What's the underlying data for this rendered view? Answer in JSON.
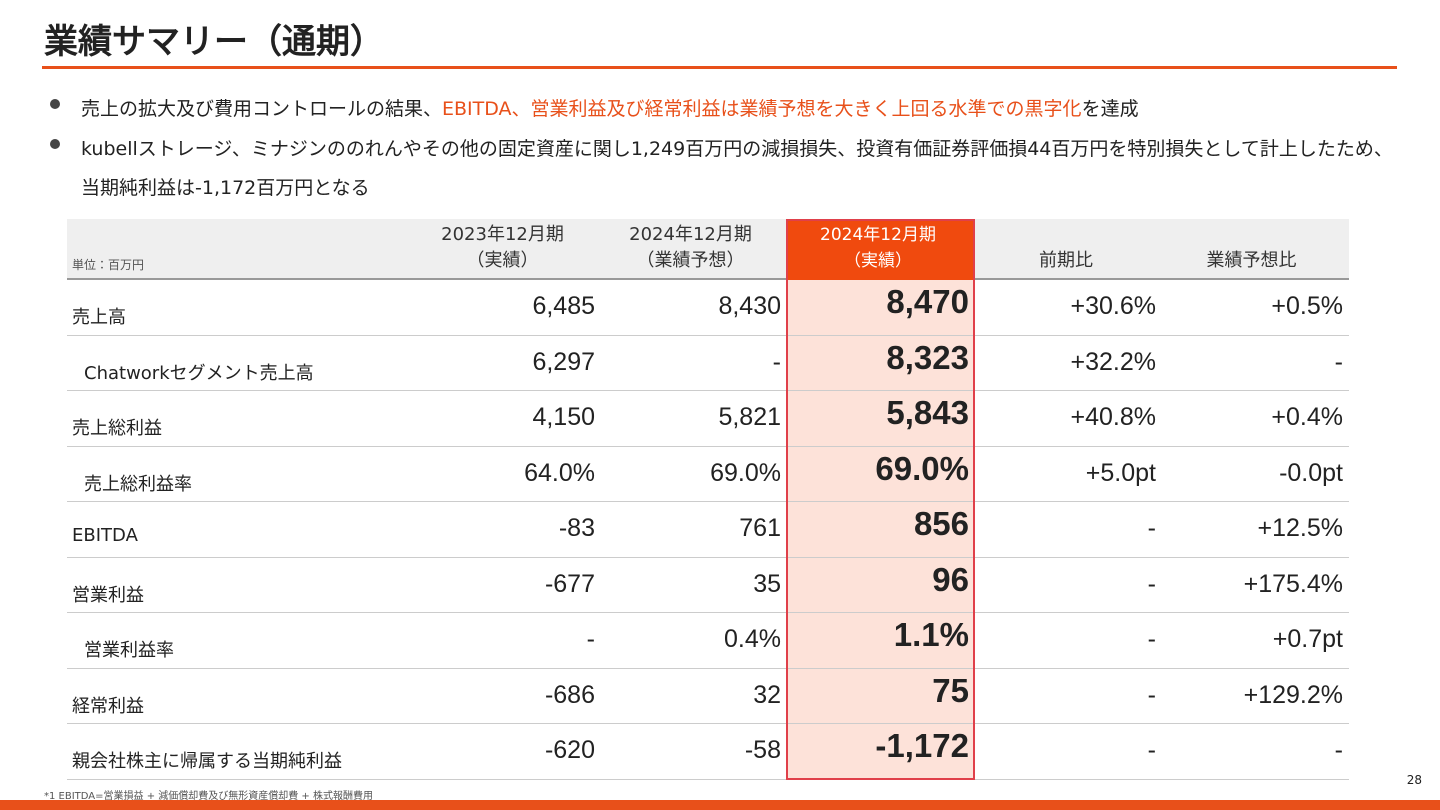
{
  "header": {
    "title": "業績サマリー（通期）"
  },
  "bullets": [
    {
      "before": "売上の拡大及び費用コントロールの結果、",
      "highlight": "EBITDA、営業利益及び経常利益は業績予想を大きく上回る水準での黒字化",
      "after": "を達成"
    },
    {
      "before": "kubellストレージ、ミナジンののれんやその他の固定資産に関し1,249百万円の減損損失、投資有価証券評価損44百万円を特別損失として計上したため、当期純利益は-1,172百万円となる"
    }
  ],
  "table": {
    "unit": "単位：百万円",
    "columns": [
      [
        "2023年12月期",
        "（実績）"
      ],
      [
        "2024年12月期",
        "（業績予想）"
      ],
      [
        "2024年12月期",
        "（実績）"
      ],
      [
        "前期比"
      ],
      [
        "業績予想比"
      ]
    ],
    "highlight_column": 2,
    "rows": [
      {
        "label": "売上高",
        "indent": false,
        "values": [
          "6,485",
          "8,430",
          "8,470",
          "+30.6%",
          "+0.5%"
        ]
      },
      {
        "label": "Chatworkセグメント売上高",
        "indent": true,
        "values": [
          "6,297",
          "-",
          "8,323",
          "+32.2%",
          "-"
        ]
      },
      {
        "label": "売上総利益",
        "indent": false,
        "values": [
          "4,150",
          "5,821",
          "5,843",
          "+40.8%",
          "+0.4%"
        ]
      },
      {
        "label": "売上総利益率",
        "indent": true,
        "values": [
          "64.0%",
          "69.0%",
          "69.0%",
          "+5.0pt",
          "-0.0pt"
        ]
      },
      {
        "label": "EBITDA",
        "indent": false,
        "values": [
          "-83",
          "761",
          "856",
          "-",
          "+12.5%"
        ]
      },
      {
        "label": "営業利益",
        "indent": false,
        "values": [
          "-677",
          "35",
          "96",
          "-",
          "+175.4%"
        ]
      },
      {
        "label": "営業利益率",
        "indent": true,
        "values": [
          "-",
          "0.4%",
          "1.1%",
          "-",
          "+0.7pt"
        ]
      },
      {
        "label": "経常利益",
        "indent": false,
        "values": [
          "-686",
          "32",
          "75",
          "-",
          "+129.2%"
        ]
      },
      {
        "label": "親会社株主に帰属する当期純利益",
        "indent": false,
        "values": [
          "-620",
          "-58",
          "-1,172",
          "-",
          "-"
        ]
      }
    ]
  },
  "footnote": "*1 EBITDA=営業損益 + 減価償却費及び無形資産償却費 + 株式報酬費用",
  "page_number": "28"
}
